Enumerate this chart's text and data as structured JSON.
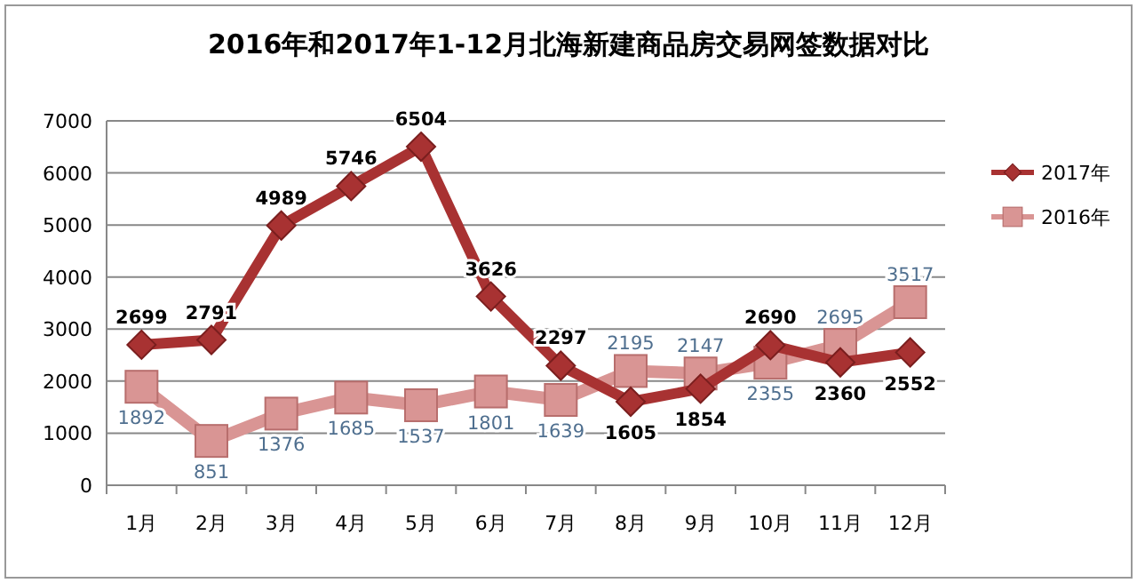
{
  "chart_data": {
    "type": "line",
    "title": "2016年和2017年1-12月北海新建商品房交易网签数据对比",
    "categories": [
      "1月",
      "2月",
      "3月",
      "4月",
      "5月",
      "6月",
      "7月",
      "8月",
      "9月",
      "10月",
      "11月",
      "12月"
    ],
    "series": [
      {
        "name": "2017年",
        "color": "#a83232",
        "marker": "diamond",
        "values": [
          2699,
          2791,
          4989,
          5746,
          6504,
          3626,
          2297,
          1605,
          1854,
          2690,
          2360,
          2552
        ]
      },
      {
        "name": "2016年",
        "color": "#d99594",
        "marker": "square",
        "values": [
          1892,
          851,
          1376,
          1685,
          1537,
          1801,
          1639,
          2195,
          2147,
          2355,
          2695,
          3517
        ]
      }
    ],
    "ylim": [
      0,
      7000
    ],
    "yticks": [
      0,
      1000,
      2000,
      3000,
      4000,
      5000,
      6000,
      7000
    ],
    "grid": "y",
    "legend": "right",
    "data_labels": true,
    "line_style": "solid"
  }
}
